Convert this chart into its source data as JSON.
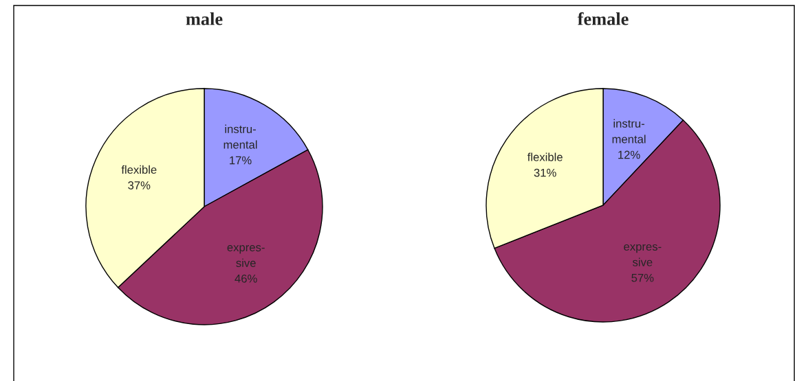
{
  "chart_data": [
    {
      "type": "pie",
      "title": "male",
      "categories": [
        "instru-\nmental",
        "expres-\nsive",
        "flexible"
      ],
      "values": [
        17,
        46,
        37
      ],
      "colors": [
        "#9999ff",
        "#993366",
        "#ffffcc"
      ],
      "value_labels": [
        "17%",
        "46%",
        "37%"
      ]
    },
    {
      "type": "pie",
      "title": "female",
      "categories": [
        "instru-\nmental",
        "expres-\nsive",
        "flexible"
      ],
      "values": [
        12,
        57,
        31
      ],
      "colors": [
        "#9999ff",
        "#993366",
        "#ffffcc"
      ],
      "value_labels": [
        "12%",
        "57%",
        "31%"
      ]
    }
  ]
}
